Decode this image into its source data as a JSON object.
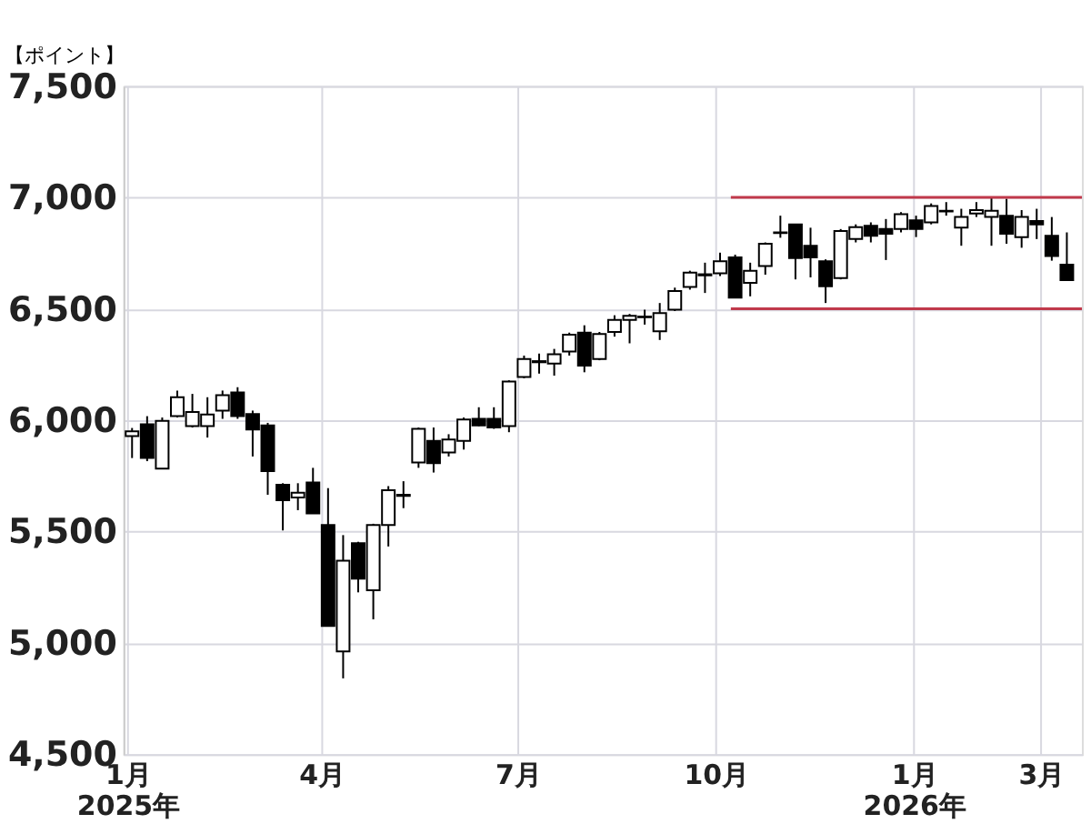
{
  "chart_data": {
    "type": "candlestick",
    "ylabel": "【ポイント】",
    "x": [
      "2025-01-03",
      "2025-01-10",
      "2025-01-17",
      "2025-01-24",
      "2025-01-31",
      "2025-02-07",
      "2025-02-14",
      "2025-02-21",
      "2025-02-28",
      "2025-03-07",
      "2025-03-14",
      "2025-03-21",
      "2025-03-28",
      "2025-04-04",
      "2025-04-11",
      "2025-04-18",
      "2025-04-25",
      "2025-05-02",
      "2025-05-09",
      "2025-05-16",
      "2025-05-23",
      "2025-05-30",
      "2025-06-06",
      "2025-06-13",
      "2025-06-20",
      "2025-06-27",
      "2025-07-04",
      "2025-07-11",
      "2025-07-18",
      "2025-07-25",
      "2025-08-01",
      "2025-08-08",
      "2025-08-15",
      "2025-08-22",
      "2025-08-29",
      "2025-09-05",
      "2025-09-12",
      "2025-09-19",
      "2025-09-26",
      "2025-10-03",
      "2025-10-10",
      "2025-10-17",
      "2025-10-24",
      "2025-10-31",
      "2025-11-07",
      "2025-11-14",
      "2025-11-21",
      "2025-11-28",
      "2025-12-05",
      "2025-12-12",
      "2025-12-19",
      "2025-12-26",
      "2026-01-02",
      "2026-01-09",
      "2026-01-16",
      "2026-01-23",
      "2026-01-30",
      "2026-02-06",
      "2026-02-13",
      "2026-02-20",
      "2026-02-27",
      "2026-03-06",
      "2026-03-13"
    ],
    "ohlc": [
      [
        5928,
        5965,
        5830,
        5950
      ],
      [
        5982,
        6018,
        5816,
        5831
      ],
      [
        5783,
        6012,
        5780,
        5997
      ],
      [
        6018,
        6133,
        6012,
        6103
      ],
      [
        5973,
        6118,
        5967,
        6037
      ],
      [
        5973,
        6103,
        5922,
        6025
      ],
      [
        6043,
        6133,
        6006,
        6112
      ],
      [
        6124,
        6148,
        6006,
        6018
      ],
      [
        6028,
        6043,
        5837,
        5958
      ],
      [
        5976,
        5988,
        5665,
        5771
      ],
      [
        5710,
        5717,
        5505,
        5641
      ],
      [
        5653,
        5717,
        5596,
        5674
      ],
      [
        5720,
        5786,
        5581,
        5581
      ],
      [
        5529,
        5695,
        5076,
        5076
      ],
      [
        4962,
        5484,
        4841,
        5369
      ],
      [
        5448,
        5454,
        5227,
        5288
      ],
      [
        5236,
        5535,
        5106,
        5529
      ],
      [
        5529,
        5704,
        5433,
        5686
      ],
      [
        5660,
        5726,
        5605,
        5665
      ],
      [
        5810,
        5967,
        5786,
        5961
      ],
      [
        5907,
        5967,
        5765,
        5807
      ],
      [
        5855,
        5937,
        5837,
        5913
      ],
      [
        5907,
        6012,
        5868,
        6003
      ],
      [
        6006,
        6058,
        5973,
        5976
      ],
      [
        6006,
        6058,
        5961,
        5967
      ],
      [
        5973,
        6179,
        5946,
        6173
      ],
      [
        6194,
        6290,
        6188,
        6275
      ],
      [
        6260,
        6299,
        6209,
        6265
      ],
      [
        6254,
        6320,
        6200,
        6296
      ],
      [
        6308,
        6393,
        6290,
        6384
      ],
      [
        6393,
        6426,
        6215,
        6245
      ],
      [
        6275,
        6396,
        6269,
        6387
      ],
      [
        6396,
        6471,
        6375,
        6450
      ],
      [
        6450,
        6477,
        6345,
        6468
      ],
      [
        6462,
        6496,
        6429,
        6465
      ],
      [
        6399,
        6526,
        6360,
        6481
      ],
      [
        6496,
        6595,
        6490,
        6580
      ],
      [
        6598,
        6671,
        6586,
        6662
      ],
      [
        6650,
        6707,
        6571,
        6655
      ],
      [
        6659,
        6752,
        6647,
        6713
      ],
      [
        6731,
        6743,
        6550,
        6550
      ],
      [
        6616,
        6707,
        6556,
        6671
      ],
      [
        6692,
        6798,
        6653,
        6792
      ],
      [
        6840,
        6918,
        6819,
        6843
      ],
      [
        6879,
        6879,
        6632,
        6728
      ],
      [
        6783,
        6864,
        6641,
        6731
      ],
      [
        6713,
        6722,
        6526,
        6601
      ],
      [
        6638,
        6858,
        6632,
        6849
      ],
      [
        6813,
        6879,
        6798,
        6867
      ],
      [
        6873,
        6888,
        6798,
        6828
      ],
      [
        6858,
        6903,
        6719,
        6837
      ],
      [
        6858,
        6934,
        6843,
        6925
      ],
      [
        6897,
        6918,
        6822,
        6858
      ],
      [
        6888,
        6973,
        6879,
        6961
      ],
      [
        6937,
        6979,
        6918,
        6940
      ],
      [
        6864,
        6949,
        6783,
        6912
      ],
      [
        6928,
        6979,
        6912,
        6943
      ],
      [
        6912,
        7000,
        6783,
        6940
      ],
      [
        6918,
        6994,
        6792,
        6837
      ],
      [
        6822,
        6943,
        6774,
        6912
      ],
      [
        6894,
        6949,
        6813,
        6879
      ],
      [
        6828,
        6912,
        6716,
        6737
      ],
      [
        6698,
        6843,
        6629,
        6629
      ]
    ],
    "series": [
      {
        "type": "line",
        "color": "#c0394b",
        "x": [
          "2025-10-08",
          "2026-03-20"
        ],
        "values": [
          7000,
          7000
        ]
      },
      {
        "type": "line",
        "color": "#c0394b",
        "x": [
          "2025-10-08",
          "2026-03-20"
        ],
        "values": [
          6500,
          6500
        ]
      }
    ],
    "xlim": [
      "2024-12-30",
      "2026-03-20"
    ],
    "xticks": [
      {
        "value": "2025-01-01",
        "label": "1月\n2025年"
      },
      {
        "value": "2025-04-01",
        "label": "4月"
      },
      {
        "value": "2025-07-01",
        "label": "7月"
      },
      {
        "value": "2025-10-01",
        "label": "10月"
      },
      {
        "value": "2026-01-01",
        "label": "1月\n2026年"
      },
      {
        "value": "2026-03-01",
        "label": "3月"
      }
    ],
    "ylim": [
      4500,
      7500
    ],
    "yticks": [
      {
        "value": 4500,
        "label": "4,500"
      },
      {
        "value": 5000,
        "label": "5,000"
      },
      {
        "value": 5500,
        "label": "5,500"
      },
      {
        "value": 6000,
        "label": "6,000"
      },
      {
        "value": 6500,
        "label": "6,500"
      },
      {
        "value": 7000,
        "label": "7,000"
      },
      {
        "value": 7500,
        "label": "7,500"
      }
    ],
    "grid": true
  }
}
